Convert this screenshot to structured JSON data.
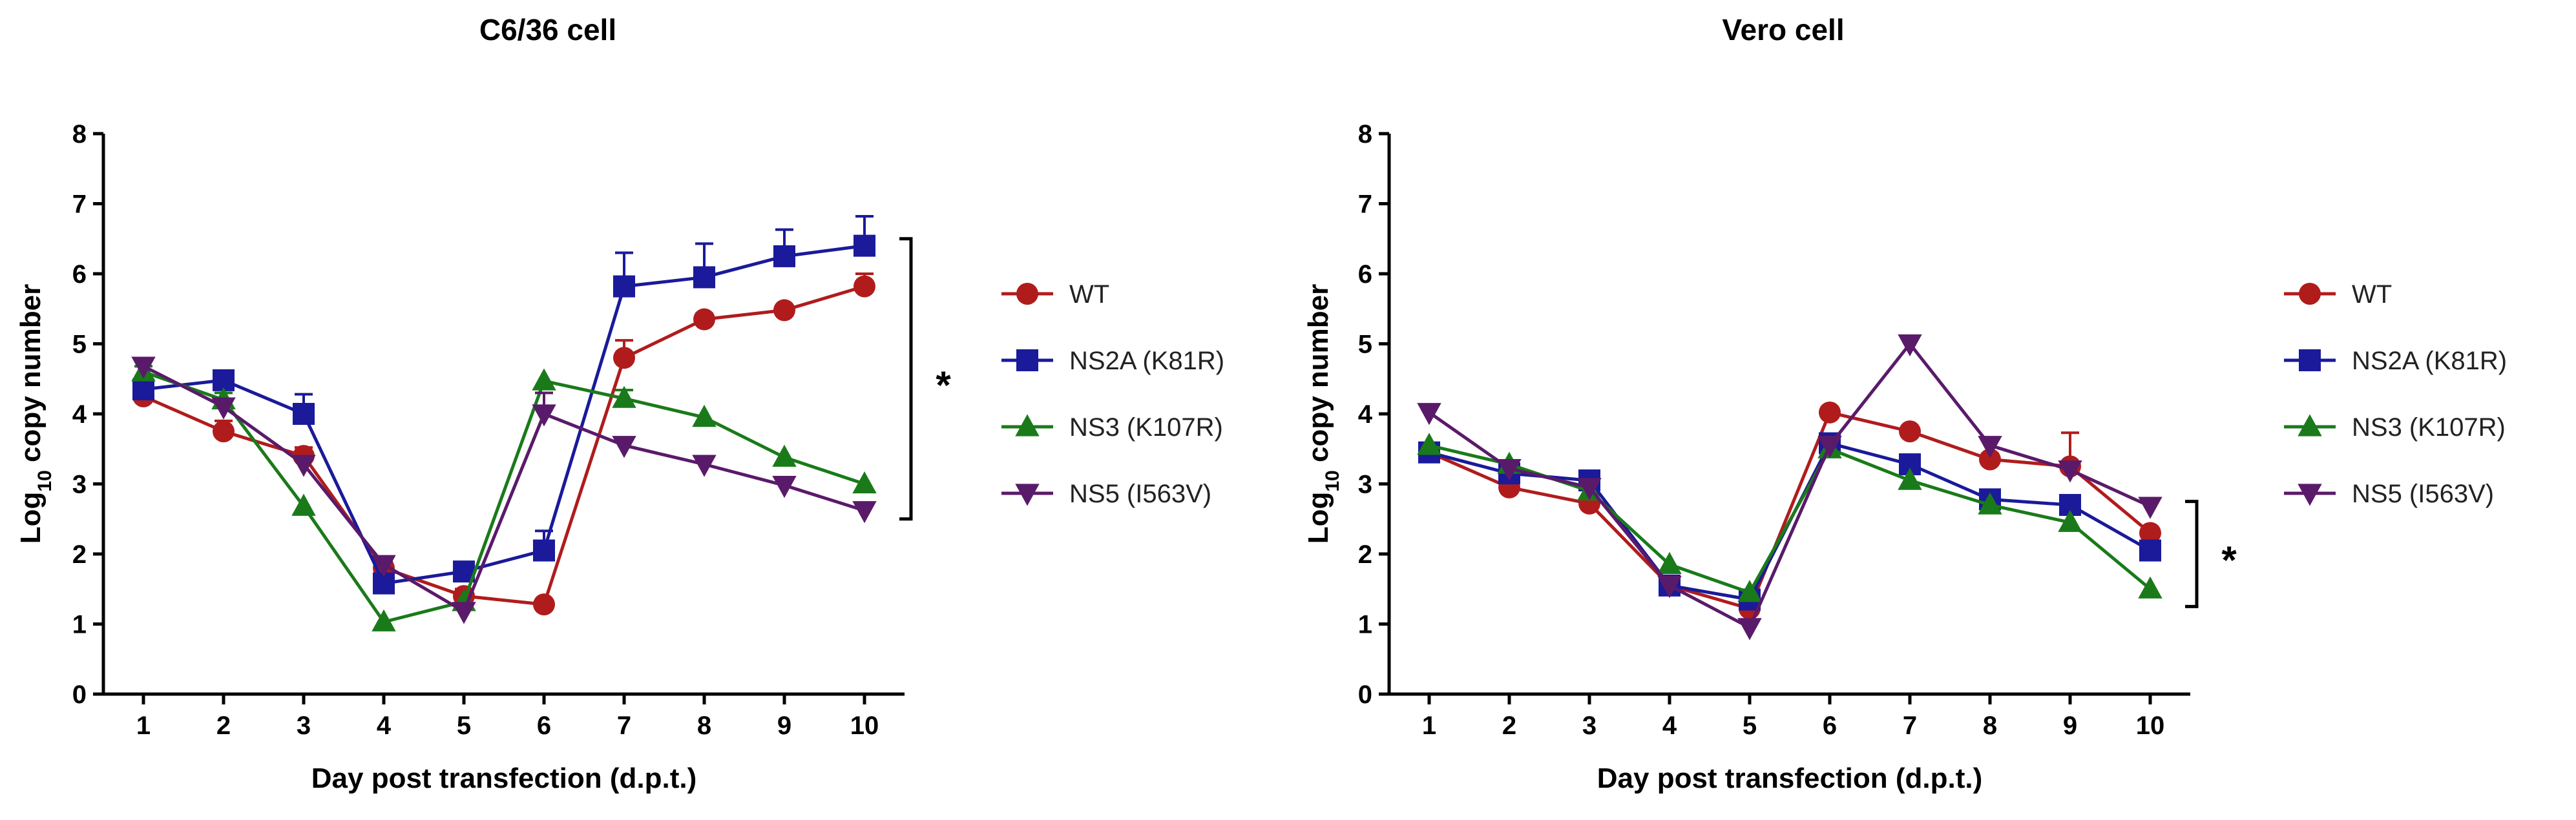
{
  "chart_data": [
    {
      "type": "line",
      "title": "C6/36 cell",
      "xlabel": "Day post transfection (d.p.t.)",
      "ylabel_main": "Log",
      "ylabel_sub": "10",
      "ylabel_rest": " copy number",
      "x": [
        1,
        2,
        3,
        4,
        5,
        6,
        7,
        8,
        9,
        10
      ],
      "xlim": [
        0.5,
        10.5
      ],
      "ylim": [
        0,
        8
      ],
      "yticks": [
        0,
        1,
        2,
        3,
        4,
        5,
        6,
        7,
        8
      ],
      "significance": "*",
      "significance_range": [
        2.5,
        6.5
      ],
      "series": [
        {
          "name": "WT",
          "color": "#b01c1c",
          "marker": "circle",
          "values": [
            4.25,
            3.75,
            3.4,
            1.8,
            1.4,
            1.28,
            4.8,
            5.35,
            5.48,
            5.82
          ],
          "errors": [
            0.1,
            0.15,
            0.12,
            0.1,
            0.1,
            0.05,
            0.25,
            0.08,
            0.06,
            0.18
          ]
        },
        {
          "name": "NS2A (K81R)",
          "color": "#1a1a9a",
          "marker": "square",
          "values": [
            4.35,
            4.48,
            4.0,
            1.58,
            1.75,
            2.05,
            5.82,
            5.95,
            6.25,
            6.4
          ],
          "errors": [
            0.1,
            0.12,
            0.28,
            0.32,
            0.08,
            0.28,
            0.48,
            0.48,
            0.38,
            0.42
          ]
        },
        {
          "name": "NS3 (K107R)",
          "color": "#1a7a1a",
          "marker": "triangle-up",
          "values": [
            4.6,
            4.2,
            2.68,
            1.03,
            1.32,
            4.47,
            4.22,
            3.95,
            3.38,
            3.0
          ],
          "errors": [
            0.08,
            0.1,
            0.05,
            0.05,
            0.05,
            0.05,
            0.12,
            0.05,
            0.05,
            0.05
          ]
        },
        {
          "name": "NS5 (I563V)",
          "color": "#5a1a6a",
          "marker": "triangle-down",
          "values": [
            4.68,
            4.1,
            3.28,
            1.85,
            1.18,
            4.0,
            3.55,
            3.28,
            2.98,
            2.62
          ],
          "errors": [
            0.05,
            0.05,
            0.05,
            0.05,
            0.05,
            0.3,
            0.05,
            0.05,
            0.05,
            0.05
          ]
        }
      ]
    },
    {
      "type": "line",
      "title": "Vero cell",
      "xlabel": "Day post transfection (d.p.t.)",
      "ylabel_main": "Log",
      "ylabel_sub": "10",
      "ylabel_rest": " copy number",
      "x": [
        1,
        2,
        3,
        4,
        5,
        6,
        7,
        8,
        9,
        10
      ],
      "xlim": [
        0.5,
        10.5
      ],
      "ylim": [
        0,
        8
      ],
      "yticks": [
        0,
        1,
        2,
        3,
        4,
        5,
        6,
        7,
        8
      ],
      "significance": "*",
      "significance_range": [
        1.25,
        2.75
      ],
      "series": [
        {
          "name": "WT",
          "color": "#b01c1c",
          "marker": "circle",
          "values": [
            3.45,
            2.95,
            2.72,
            1.55,
            1.22,
            4.02,
            3.75,
            3.35,
            3.25,
            2.3
          ],
          "errors": [
            0.05,
            0.08,
            0.08,
            0.05,
            0.05,
            0.05,
            0.05,
            0.08,
            0.48,
            0.05
          ]
        },
        {
          "name": "NS2A (K81R)",
          "color": "#1a1a9a",
          "marker": "square",
          "values": [
            3.45,
            3.15,
            3.05,
            1.55,
            1.35,
            3.58,
            3.28,
            2.78,
            2.7,
            2.05
          ],
          "errors": [
            0.05,
            0.05,
            0.08,
            0.05,
            0.05,
            0.05,
            0.05,
            0.05,
            0.05,
            0.05
          ]
        },
        {
          "name": "NS3 (K107R)",
          "color": "#1a7a1a",
          "marker": "triangle-up",
          "values": [
            3.55,
            3.28,
            2.9,
            1.85,
            1.45,
            3.5,
            3.05,
            2.7,
            2.45,
            1.5
          ],
          "errors": [
            0.05,
            0.05,
            0.05,
            0.05,
            0.05,
            0.05,
            0.05,
            0.05,
            0.05,
            0.05
          ]
        },
        {
          "name": "NS5 (I563V)",
          "color": "#5a1a6a",
          "marker": "triangle-down",
          "values": [
            4.02,
            3.22,
            2.95,
            1.55,
            0.95,
            3.55,
            5.0,
            3.55,
            3.2,
            2.68
          ],
          "errors": [
            0.05,
            0.05,
            0.05,
            0.05,
            0.05,
            0.05,
            0.05,
            0.05,
            0.05,
            0.05
          ]
        }
      ]
    }
  ]
}
